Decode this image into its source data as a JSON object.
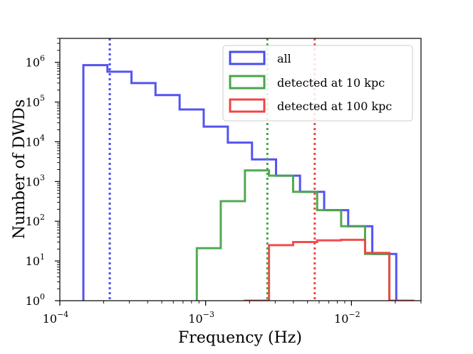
{
  "chart_data": {
    "type": "step-histogram",
    "title": "",
    "xlabel": "Frequency (Hz)",
    "ylabel": "Number of DWDs",
    "xscale": "log",
    "yscale": "log",
    "xlim": [
      0.0001,
      0.03
    ],
    "ylim": [
      1,
      4000000
    ],
    "legend_position": "top-right",
    "x_ticks": [
      {
        "value": 0.0001,
        "base": "10",
        "exp": "−4"
      },
      {
        "value": 0.001,
        "base": "10",
        "exp": "−3"
      },
      {
        "value": 0.01,
        "base": "10",
        "exp": "−2"
      }
    ],
    "y_ticks": [
      {
        "value": 1,
        "base": "10",
        "exp": "0"
      },
      {
        "value": 10,
        "base": "10",
        "exp": "1"
      },
      {
        "value": 100,
        "base": "10",
        "exp": "2"
      },
      {
        "value": 1000,
        "base": "10",
        "exp": "3"
      },
      {
        "value": 10000,
        "base": "10",
        "exp": "4"
      },
      {
        "value": 100000,
        "base": "10",
        "exp": "5"
      },
      {
        "value": 1000000,
        "base": "10",
        "exp": "6"
      }
    ],
    "series": [
      {
        "name": "all",
        "color": "#4b4bef",
        "bin_edges": [
          0.000145,
          0.000212,
          0.00031,
          0.000453,
          0.000663,
          0.00097,
          0.00142,
          0.00208,
          0.00304,
          0.00444,
          0.0065,
          0.0095,
          0.0139,
          0.0203
        ],
        "counts": [
          850000,
          580000,
          300000,
          150000,
          65000,
          24000,
          9500,
          3600,
          1400,
          550,
          190,
          75,
          15
        ]
      },
      {
        "name": "detected at 10 kpc",
        "color": "#4aa44a",
        "bin_edges": [
          0.00087,
          0.00127,
          0.00186,
          0.00272,
          0.00398,
          0.00582,
          0.0085,
          0.0124,
          0.0182
        ],
        "counts": [
          21,
          320,
          1900,
          1400,
          550,
          190,
          75,
          15
        ]
      },
      {
        "name": "detected at 100 kpc",
        "color": "#ef4545",
        "bin_edges": [
          0.00186,
          0.00272,
          0.00398,
          0.00582,
          0.0085,
          0.0124,
          0.0182,
          0.0266
        ],
        "counts": [
          1,
          25,
          30,
          33,
          34,
          16,
          1
        ]
      }
    ],
    "vlines": [
      {
        "x": 0.00022,
        "color": "#4b4bef",
        "style": "dotted",
        "series": "all"
      },
      {
        "x": 0.00265,
        "color": "#4aa44a",
        "style": "dotted",
        "series": "detected at 10 kpc"
      },
      {
        "x": 0.0056,
        "color": "#ef4545",
        "style": "dotted",
        "series": "detected at 100 kpc"
      }
    ]
  }
}
